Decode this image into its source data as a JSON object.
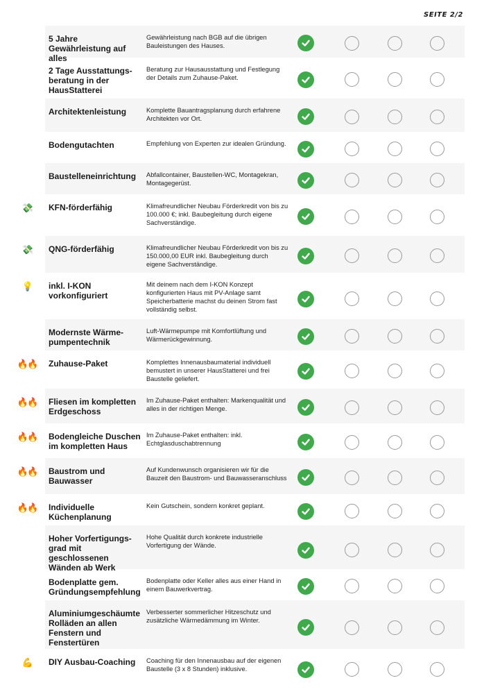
{
  "page_label": "SEITE 2/2",
  "colors": {
    "check": "#3fa94c",
    "row_band": "#f5f5f5",
    "circle": "#9a9a9a"
  },
  "rows": [
    {
      "name": "5 Jahre Gewährleistung auf alles",
      "desc": "Gewährleistung nach BGB auf die übrigen Bauleistungen des Hauses.",
      "icon": "",
      "options": [
        true,
        false,
        false,
        false
      ]
    },
    {
      "name": "2 Tage Ausstattungs-beratung in der HausStatterei",
      "desc": "Beratung zur Hausausstattung und Festlegung der Details zum Zuhause-Paket.",
      "icon": "",
      "options": [
        true,
        false,
        false,
        false
      ]
    },
    {
      "name": "Architektenleistung",
      "desc": "Komplette Bauantragsplanung durch erfahrene Architekten vor Ort.",
      "icon": "",
      "options": [
        true,
        false,
        false,
        false
      ]
    },
    {
      "name": "Bodengutachten",
      "desc": "Empfehlung von Experten zur idealen Gründung.",
      "icon": "",
      "options": [
        true,
        false,
        false,
        false
      ]
    },
    {
      "name": "Baustelleneinrichtung",
      "desc": "Abfallcontainer, Baustellen-WC, Montagekran, Montagegerüst.",
      "icon": "",
      "options": [
        true,
        false,
        false,
        false
      ]
    },
    {
      "name": "KFN-förderfähig",
      "desc": "Klimafreundlicher Neubau Förderkredit von bis zu 100.000 €; inkl. Baubegleitung durch eigene Sachverständige.",
      "icon": "money-with-wings",
      "options": [
        true,
        false,
        false,
        false
      ]
    },
    {
      "name": "QNG-förderfähig",
      "desc": "Klimafreundlicher Neubau Förderkredit von bis zu 150.000,00 EUR inkl. Baubegleitung durch eigene Sachverständige.",
      "icon": "money-with-wings",
      "options": [
        true,
        false,
        false,
        false
      ]
    },
    {
      "name": "inkl. I-KON vorkonfiguriert",
      "desc": "Mit deinem nach dem I-KON Konzept konfigurierten Haus mit PV-Anlage samt Speicherbatterie machst du deinen Strom fast vollständig selbst.",
      "icon": "light-bulb",
      "options": [
        true,
        false,
        false,
        false
      ]
    },
    {
      "name": "Modernste Wärme-pumpentechnik",
      "desc": "Luft-Wärmepumpe mit Komfortlüftung und Wärmerückgewinnung.",
      "icon": "",
      "options": [
        true,
        false,
        false,
        false
      ]
    },
    {
      "name": "Zuhause-Paket",
      "desc": "Komplettes Innenausbaumaterial individuell bemustert in unserer HausStatterei und frei Baustelle geliefert.",
      "icon": "fire",
      "options": [
        true,
        false,
        false,
        false
      ]
    },
    {
      "name": "Fliesen im kompletten Erdgeschoss",
      "desc": "Im Zuhause-Paket enthalten: Markenqualität und alles in der richtigen Menge.",
      "icon": "fire",
      "options": [
        true,
        false,
        false,
        false
      ]
    },
    {
      "name": "Bodengleiche Duschen im kompletten Haus",
      "desc": "Im Zuhause-Paket enthalten: inkl. Echtglasduschabtrennung",
      "icon": "fire",
      "options": [
        true,
        false,
        false,
        false
      ]
    },
    {
      "name": "Baustrom und Bauwasser",
      "desc": "Auf Kundenwunsch organisieren wir für die Bauzeit den Baustrom- und Bauwasseranschluss",
      "icon": "fire",
      "options": [
        true,
        false,
        false,
        false
      ]
    },
    {
      "name": "Individuelle Küchenplanung",
      "desc": "Kein Gutschein, sondern konkret geplant.",
      "icon": "fire",
      "options": [
        true,
        false,
        false,
        false
      ]
    },
    {
      "name": "Hoher Vorfertigungs-grad mit geschlossenen Wänden ab Werk",
      "desc": "Hohe Qualität durch konkrete industrielle Vorfertigung der Wände.",
      "icon": "",
      "options": [
        true,
        false,
        false,
        false
      ]
    },
    {
      "name": "Bodenplatte gem. Gründungsempfehlung",
      "desc": "Bodenplatte oder Keller alles aus einer Hand in einem Bauwerkvertrag.",
      "icon": "",
      "options": [
        true,
        false,
        false,
        false
      ]
    },
    {
      "name": "Aluminiumgeschäumte Rolläden an allen Fenstern und Fenstertüren",
      "desc": "Verbesserter sommerlicher Hitzeschutz und zusätzliche Wärmedämmung im Winter.",
      "icon": "",
      "options": [
        true,
        false,
        false,
        false
      ]
    },
    {
      "name": "DIY Ausbau-Coaching",
      "desc": "Coaching für den Innenausbau auf der eigenen Baustelle (3 x 8 Stunden) inklusive.",
      "icon": "flexed-biceps",
      "options": [
        true,
        false,
        false,
        false
      ]
    }
  ]
}
